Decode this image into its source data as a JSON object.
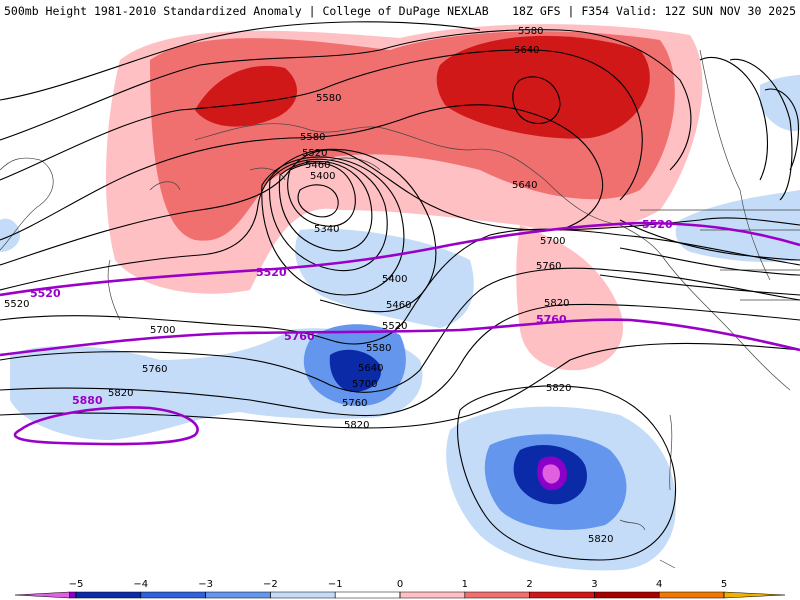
{
  "header": {
    "title": "500mb Height 1981-2010 Standardized Anomaly | College of DuPage NEXLAB",
    "run_info": "18Z GFS | F354 Valid: 12Z SUN NOV 30 2025"
  },
  "contour_labels": {
    "c5580_a": "5580",
    "c5640_a": "5640",
    "c5580_b": "5580",
    "c5580_c": "5580",
    "c5520_a": "5520",
    "c5460_a": "5460",
    "c5400_a": "5400",
    "c5340_a": "5340",
    "c5640_b": "5640",
    "c5700_a": "5700",
    "c5760_a": "5760",
    "c5400_b": "5400",
    "c5460_b": "5460",
    "c5820_a": "5820",
    "c5520_b": "5520",
    "c5580_d": "5580",
    "c5640_c": "5640",
    "c5700_b": "5700",
    "c5760_b": "5760",
    "c5820_b": "5820",
    "c5700_c": "5700",
    "c5760_c": "5760",
    "c5820_c": "5820",
    "c5520_c": "5520",
    "c5820_d": "5820",
    "c5820_e": "5820"
  },
  "climo_labels": {
    "p5520_left": "5520",
    "p5520_mid": "5520",
    "p5520_right": "5520",
    "p5760_left": "5760",
    "p5760_right": "5760",
    "p5880": "5880"
  },
  "colorbar": {
    "ticks": [
      "−5",
      "−4",
      "−3",
      "−2",
      "−1",
      "0",
      "1",
      "2",
      "3",
      "4",
      "5"
    ],
    "colors": [
      "#e060e0",
      "#8a00c8",
      "#0a2aa8",
      "#2d62dc",
      "#6496ee",
      "#c4dcf8",
      "#ffffff",
      "#ffc0c4",
      "#f07070",
      "#d01818",
      "#a80000",
      "#f07800",
      "#f0b000"
    ]
  }
}
